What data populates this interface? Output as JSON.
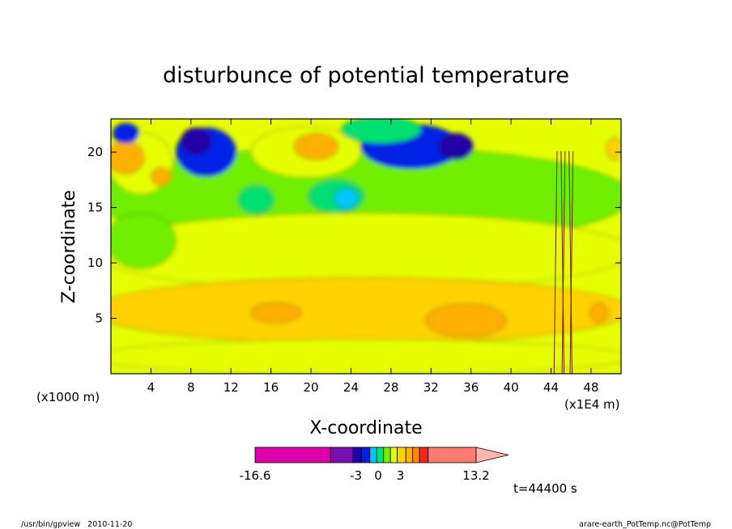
{
  "chart_data": {
    "type": "heatmap",
    "title": "disturbunce of potential temperature",
    "xlabel": "X-coordinate",
    "ylabel": "Z-coordinate",
    "x_unit_label": "(x1000 m)",
    "x_extra_label": "(x1E4 m)",
    "xlim": [
      0,
      51
    ],
    "ylim": [
      0,
      23
    ],
    "x_ticks": [
      4,
      8,
      12,
      16,
      20,
      24,
      28,
      32,
      36,
      40,
      44,
      48
    ],
    "y_ticks": [
      5,
      10,
      15,
      20
    ],
    "colorbar": {
      "colors": [
        "#dd00aa",
        "#7a0fb0",
        "#2000a8",
        "#0020e6",
        "#00c8ff",
        "#00e070",
        "#70f000",
        "#e6ff00",
        "#ffd200",
        "#ffb000",
        "#ff8a00",
        "#ff2222",
        "#ff7a70",
        "#ffb6b0"
      ],
      "labels": [
        {
          "text": "-16.6",
          "value": -16.6
        },
        {
          "text": "-3",
          "value": -3
        },
        {
          "text": "0",
          "value": 0
        },
        {
          "text": "3",
          "value": 3
        },
        {
          "text": "13.2",
          "value": 13.2
        }
      ]
    },
    "regions": [
      {
        "name": "high-red-left",
        "x": 1.5,
        "z": 19.5,
        "rx": 1.8,
        "rz": 1.5,
        "level": 9
      },
      {
        "name": "high-red-left2",
        "x": 5.0,
        "z": 17.8,
        "rx": 1.0,
        "rz": 0.8,
        "level": 9
      },
      {
        "name": "high-red-center",
        "x": 20.5,
        "z": 20.5,
        "rx": 2.2,
        "rz": 1.2,
        "level": 9
      },
      {
        "name": "high-red-right",
        "x": 50.3,
        "z": 20.3,
        "rx": 0.8,
        "rz": 1.0,
        "level": 8
      },
      {
        "name": "orange-left",
        "x": 3.0,
        "z": 19.0,
        "rx": 3.2,
        "rz": 2.8,
        "level": 7
      },
      {
        "name": "orange-center",
        "x": 19.5,
        "z": 20.0,
        "rx": 5.5,
        "rz": 2.3,
        "level": 7
      },
      {
        "name": "purple-8",
        "x": 8.5,
        "z": 21.0,
        "rx": 1.5,
        "rz": 1.2,
        "level": 2
      },
      {
        "name": "purple-34",
        "x": 34.5,
        "z": 20.5,
        "rx": 1.7,
        "rz": 1.2,
        "level": 2
      },
      {
        "name": "blue-10",
        "x": 9.5,
        "z": 20.0,
        "rx": 3.0,
        "rz": 2.2,
        "level": 3
      },
      {
        "name": "blue-30",
        "x": 30.0,
        "z": 20.5,
        "rx": 5.0,
        "rz": 2.0,
        "level": 3
      },
      {
        "name": "blue-2",
        "x": 1.5,
        "z": 21.7,
        "rx": 1.3,
        "rz": 0.9,
        "level": 3
      },
      {
        "name": "cyan-14",
        "x": 14.5,
        "z": 15.7,
        "rx": 1.8,
        "rz": 1.3,
        "level": 5
      },
      {
        "name": "cyan-23",
        "x": 22.5,
        "z": 16.0,
        "rx": 2.8,
        "rz": 1.5,
        "level": 5
      },
      {
        "name": "blue-24",
        "x": 23.5,
        "z": 15.8,
        "rx": 1.2,
        "rz": 0.9,
        "level": 4
      },
      {
        "name": "cyan-top",
        "x": 27.0,
        "z": 22.0,
        "rx": 4.0,
        "rz": 1.2,
        "level": 5
      },
      {
        "name": "green-upper",
        "x": 25.0,
        "z": 16.0,
        "rx": 27.0,
        "rz": 4.5,
        "level": 6
      },
      {
        "name": "green-left",
        "x": 3.0,
        "z": 12.0,
        "rx": 3.5,
        "rz": 2.5,
        "level": 6
      },
      {
        "name": "yellow-mid",
        "x": 25.0,
        "z": 11.0,
        "rx": 27.0,
        "rz": 3.5,
        "level": 7
      },
      {
        "name": "yellow-lower",
        "x": 25.0,
        "z": 1.5,
        "rx": 27.0,
        "rz": 1.6,
        "level": 7
      },
      {
        "name": "lightorange-band",
        "x": 25.0,
        "z": 5.7,
        "rx": 27.0,
        "rz": 3.0,
        "level": 8
      },
      {
        "name": "orange-16",
        "x": 16.5,
        "z": 5.5,
        "rx": 2.5,
        "rz": 0.9,
        "level": 9
      },
      {
        "name": "orange-34",
        "x": 35.5,
        "z": 4.8,
        "rx": 4.0,
        "rz": 1.5,
        "level": 9
      },
      {
        "name": "orange-49",
        "x": 48.8,
        "z": 5.5,
        "rx": 0.9,
        "rz": 0.9,
        "level": 9
      }
    ]
  },
  "time_label": "t=44400 s",
  "footer_left": "/usr/bin/gpview   2010-11-20",
  "footer_right": "arare-earth_PotTemp.nc@PotTemp"
}
